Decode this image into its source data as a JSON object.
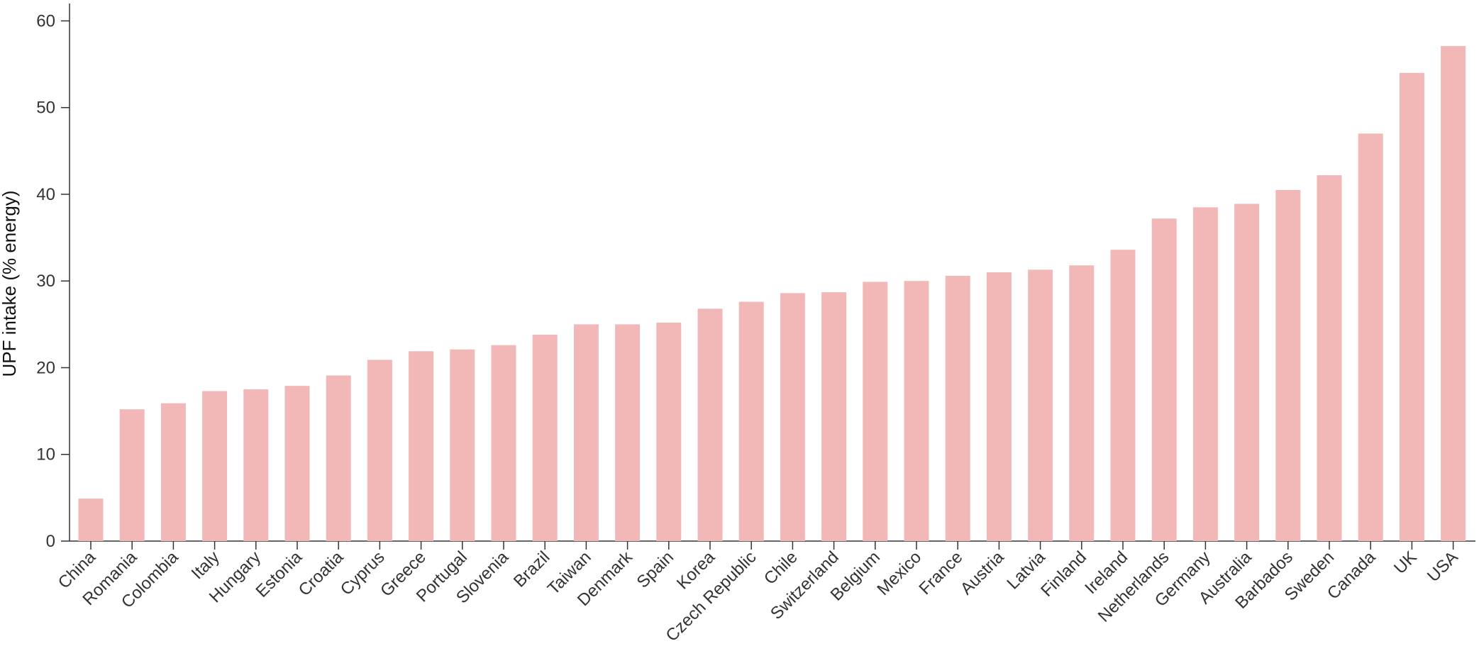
{
  "chart_data": {
    "type": "bar",
    "title": "",
    "xlabel": "",
    "ylabel": "UPF intake (% energy)",
    "ylim": [
      0,
      62
    ],
    "yticks": [
      0,
      10,
      20,
      30,
      40,
      50,
      60
    ],
    "grid": false,
    "bar_color": "#f2b8b8",
    "categories": [
      "China",
      "Romania",
      "Colombia",
      "Italy",
      "Hungary",
      "Estonia",
      "Croatia",
      "Cyprus",
      "Greece",
      "Portugal",
      "Slovenia",
      "Brazil",
      "Taiwan",
      "Denmark",
      "Spain",
      "Korea",
      "Czech Republic",
      "Chile",
      "Switzerland",
      "Belgium",
      "Mexico",
      "France",
      "Austria",
      "Latvia",
      "Finland",
      "Ireland",
      "Netherlands",
      "Germany",
      "Australia",
      "Barbados",
      "Sweden",
      "Canada",
      "UK",
      "USA"
    ],
    "values": [
      4.9,
      15.2,
      15.9,
      17.3,
      17.5,
      17.9,
      19.1,
      20.9,
      21.9,
      22.1,
      22.6,
      23.8,
      25.0,
      25.0,
      25.2,
      26.8,
      27.6,
      28.6,
      28.7,
      29.9,
      30.0,
      30.6,
      31.0,
      31.3,
      31.8,
      33.6,
      37.2,
      38.5,
      38.9,
      40.5,
      42.2,
      47.0,
      54.0,
      57.1
    ]
  }
}
